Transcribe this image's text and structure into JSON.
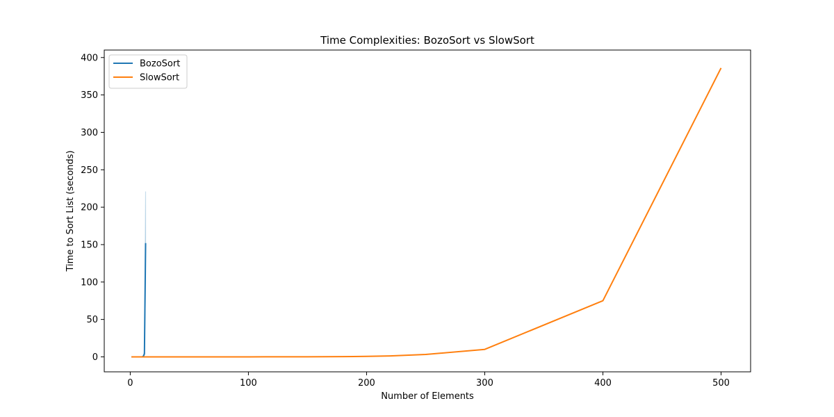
{
  "chart_data": {
    "type": "line",
    "title": "Time Complexities: BozoSort vs SlowSort",
    "xlabel": "Number of Elements",
    "ylabel": "Time to Sort List (seconds)",
    "xlim": [
      -22,
      525
    ],
    "ylim": [
      -20,
      410
    ],
    "xticks": [
      0,
      100,
      200,
      300,
      400,
      500
    ],
    "yticks": [
      0,
      50,
      100,
      150,
      200,
      250,
      300,
      350,
      400
    ],
    "grid": false,
    "legend_position": "upper-left",
    "series": [
      {
        "name": "BozoSort",
        "color": "#1f77b4",
        "x": [
          1,
          2,
          3,
          4,
          5,
          6,
          7,
          8,
          9,
          10,
          11,
          12,
          13
        ],
        "y": [
          0,
          0,
          0,
          0,
          0,
          0,
          0,
          0,
          0,
          0.1,
          0.5,
          4,
          152
        ],
        "band": {
          "color": "#1f77b4",
          "x": [
            1,
            2,
            3,
            4,
            5,
            6,
            7,
            8,
            9,
            10,
            11,
            12,
            13
          ],
          "lower": [
            0,
            0,
            0,
            0,
            0,
            0,
            0,
            0,
            0,
            0,
            0,
            2,
            100
          ],
          "upper": [
            0,
            0,
            0,
            0,
            0,
            0,
            0,
            0,
            0,
            0.3,
            1.5,
            7,
            221
          ]
        }
      },
      {
        "name": "SlowSort",
        "color": "#ff7f0e",
        "x": [
          1,
          50,
          100,
          150,
          180,
          200,
          220,
          250,
          300,
          400,
          500
        ],
        "y": [
          0,
          0,
          0,
          0.1,
          0.3,
          0.7,
          1.3,
          3.2,
          10,
          75,
          386
        ]
      }
    ]
  }
}
